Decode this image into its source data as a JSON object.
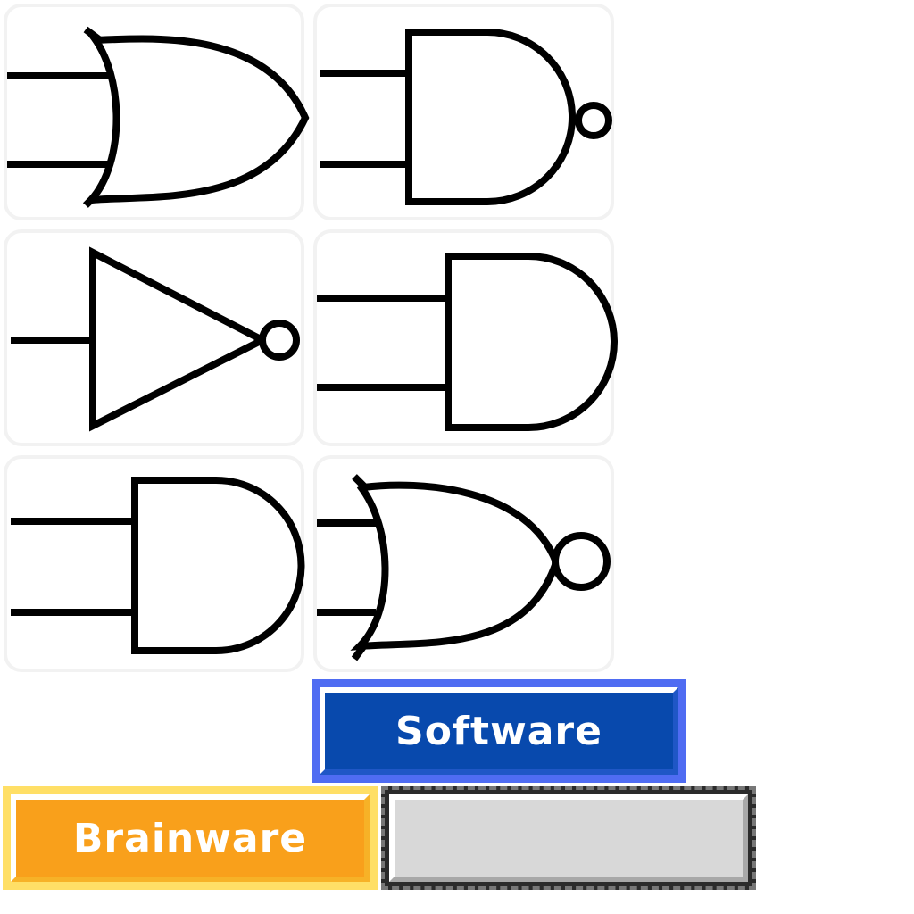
{
  "gates": [
    {
      "icon": "or-gate-icon"
    },
    {
      "icon": "nand-gate-icon"
    },
    {
      "icon": "not-gate-icon"
    },
    {
      "icon": "and-gate-icon"
    },
    {
      "icon": "and-gate-icon"
    },
    {
      "icon": "nor-gate-icon"
    }
  ],
  "answers": {
    "software_label": "Software",
    "brainware_label": "Brainware",
    "empty_label": ""
  },
  "colors": {
    "software": "#0849ad",
    "brainware": "#f9a01b",
    "empty": "#d8d8d8"
  }
}
